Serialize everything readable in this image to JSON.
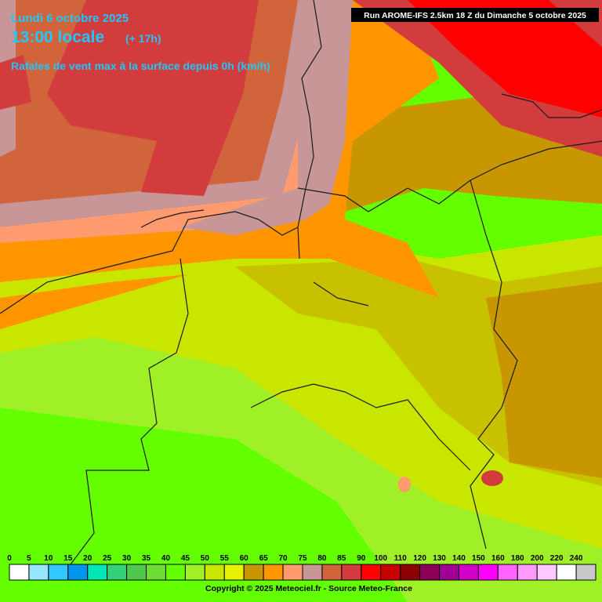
{
  "header": {
    "date": "Lundi 6 octobre 2025",
    "time": "13:00 locale",
    "lead": "(+ 17h)",
    "parameter": "Rafales de vent max à la surface depuis 0h (km/h)",
    "run": "Run AROME-IFS 2.5km 18 Z du Dimanche 5 octobre 2025"
  },
  "legend": {
    "items": [
      {
        "label": 0,
        "color": "#ffffff"
      },
      {
        "label": 5,
        "color": "#96e6ff"
      },
      {
        "label": 10,
        "color": "#32c8ff"
      },
      {
        "label": 15,
        "color": "#0096f0"
      },
      {
        "label": 20,
        "color": "#00e6b4"
      },
      {
        "label": 25,
        "color": "#32d278"
      },
      {
        "label": 30,
        "color": "#50c850"
      },
      {
        "label": 35,
        "color": "#6edc32"
      },
      {
        "label": 40,
        "color": "#64ff00"
      },
      {
        "label": 45,
        "color": "#a0f028"
      },
      {
        "label": 50,
        "color": "#c8e600"
      },
      {
        "label": 55,
        "color": "#e6f000"
      },
      {
        "label": 60,
        "color": "#c89600"
      },
      {
        "label": 65,
        "color": "#ff9600"
      },
      {
        "label": 70,
        "color": "#ff9b6e"
      },
      {
        "label": 75,
        "color": "#c89696"
      },
      {
        "label": 80,
        "color": "#d2643c"
      },
      {
        "label": 85,
        "color": "#d23c3c"
      },
      {
        "label": 90,
        "color": "#ff0000"
      },
      {
        "label": 100,
        "color": "#c80000"
      },
      {
        "label": 110,
        "color": "#8c0000"
      },
      {
        "label": 120,
        "color": "#8c005a"
      },
      {
        "label": 130,
        "color": "#a00096"
      },
      {
        "label": 140,
        "color": "#d200c8"
      },
      {
        "label": 150,
        "color": "#ff00ff"
      },
      {
        "label": 160,
        "color": "#ff64ff"
      },
      {
        "label": 180,
        "color": "#ff9bff"
      },
      {
        "label": 200,
        "color": "#ffc8ff"
      },
      {
        "label": 220,
        "color": "#ffffff"
      },
      {
        "label": 240,
        "color": "#c8c8c8"
      }
    ]
  },
  "footer": {
    "copyright": "Copyright © 2025 Meteociel.fr - Source Meteo-France"
  }
}
